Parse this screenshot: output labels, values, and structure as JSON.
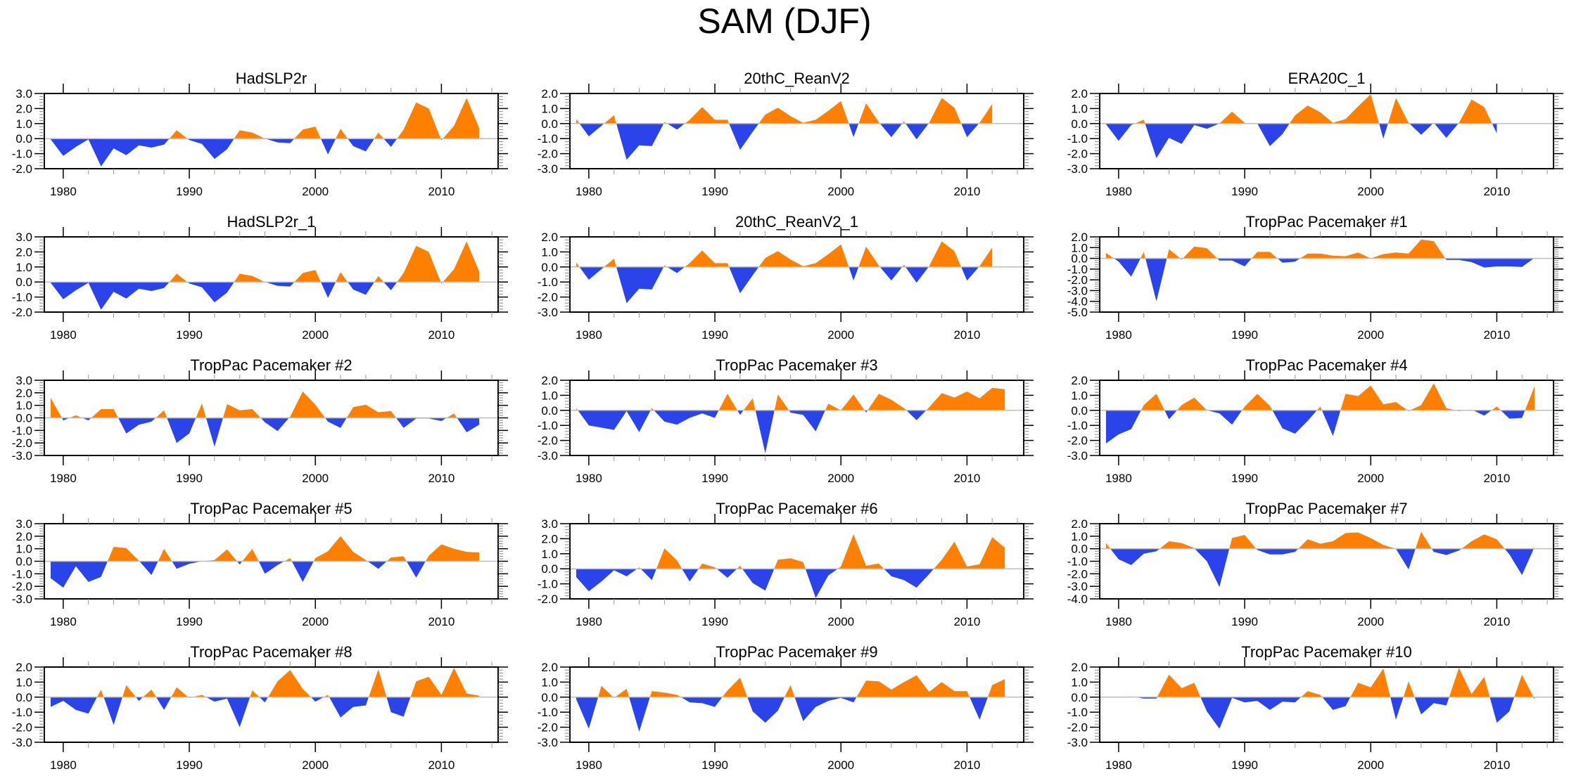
{
  "title": "SAM (DJF)",
  "colors": {
    "positive": "#ff8000",
    "negative": "#2a44ea",
    "zero_line": "#bdbdbd",
    "frame": "#000000"
  },
  "chart_data": [
    {
      "type": "area",
      "title": "HadSLP2r",
      "x_start": 1979,
      "ylim": [
        -2,
        3
      ],
      "yticks": [
        "3.0",
        "2.0",
        "1.0",
        "0.0",
        "-1.0",
        "-2.0"
      ],
      "xticks": [
        "1980",
        "1990",
        "2000",
        "2010"
      ],
      "xlim": [
        1978.5,
        2014.5
      ],
      "values": [
        -0.05,
        -1.15,
        -0.55,
        -0.05,
        -1.85,
        -0.65,
        -1.1,
        -0.45,
        -0.6,
        -0.4,
        0.55,
        -0.1,
        -0.35,
        -1.35,
        -0.7,
        0.55,
        0.4,
        0.0,
        -0.25,
        -0.3,
        0.6,
        0.8,
        -1.05,
        0.65,
        -0.5,
        -0.85,
        0.4,
        -0.55,
        0.6,
        2.4,
        2.0,
        -0.1,
        0.85,
        2.7,
        0.7
      ]
    },
    {
      "type": "area",
      "title": "20thC_ReanV2",
      "x_start": 1979,
      "ylim": [
        -3,
        2
      ],
      "yticks": [
        "2.0",
        "1.0",
        "0.0",
        "-1.0",
        "-2.0",
        "-3.0"
      ],
      "xticks": [
        "1980",
        "1990",
        "2000",
        "2010"
      ],
      "xlim": [
        1978.5,
        2014.5
      ],
      "values": [
        0.3,
        -0.85,
        -0.15,
        0.55,
        -2.4,
        -1.45,
        -1.5,
        0.1,
        -0.4,
        0.25,
        1.1,
        0.25,
        0.25,
        -1.75,
        -0.55,
        0.6,
        1.05,
        0.5,
        0.05,
        0.25,
        0.85,
        1.5,
        -0.9,
        1.35,
        0.1,
        -0.9,
        0.15,
        -1.05,
        0.05,
        1.7,
        1.05,
        -0.9,
        0.05,
        1.3
      ]
    },
    {
      "type": "area",
      "title": "ERA20C_1",
      "x_start": 1979,
      "ylim": [
        -3,
        2
      ],
      "yticks": [
        "2.0",
        "1.0",
        "0.0",
        "-1.0",
        "-2.0",
        "-3.0"
      ],
      "xticks": [
        "1980",
        "1990",
        "2000",
        "2010"
      ],
      "xlim": [
        1978.5,
        2011.5
      ],
      "values": [
        -0.05,
        -1.15,
        -0.1,
        0.25,
        -2.3,
        -0.95,
        -1.35,
        -0.1,
        -0.35,
        0.0,
        0.8,
        0.05,
        0.0,
        -1.5,
        -0.7,
        0.55,
        1.2,
        0.75,
        0.05,
        0.3,
        1.15,
        1.95,
        -1.0,
        1.7,
        0.05,
        -0.75,
        0.05,
        -0.95,
        0.05,
        1.6,
        1.1,
        -0.65
      ]
    },
    {
      "type": "area",
      "title": "HadSLP2r_1",
      "x_start": 1979,
      "ylim": [
        -2,
        3
      ],
      "yticks": [
        "3.0",
        "2.0",
        "1.0",
        "0.0",
        "-1.0",
        "-2.0"
      ],
      "xticks": [
        "1980",
        "1990",
        "2000",
        "2010"
      ],
      "xlim": [
        1978.5,
        2014.5
      ],
      "values": [
        -0.05,
        -1.15,
        -0.55,
        -0.05,
        -1.85,
        -0.65,
        -1.1,
        -0.45,
        -0.6,
        -0.4,
        0.55,
        -0.1,
        -0.35,
        -1.35,
        -0.7,
        0.55,
        0.4,
        0.0,
        -0.25,
        -0.3,
        0.6,
        0.8,
        -1.05,
        0.65,
        -0.5,
        -0.85,
        0.4,
        -0.55,
        0.6,
        2.4,
        2.0,
        -0.1,
        0.85,
        2.7,
        0.7
      ]
    },
    {
      "type": "area",
      "title": "20thC_ReanV2_1",
      "x_start": 1979,
      "ylim": [
        -3,
        2
      ],
      "yticks": [
        "2.0",
        "1.0",
        "0.0",
        "-1.0",
        "-2.0",
        "-3.0"
      ],
      "xticks": [
        "1980",
        "1990",
        "2000",
        "2010"
      ],
      "xlim": [
        1978.5,
        2014.5
      ],
      "values": [
        0.3,
        -0.85,
        -0.15,
        0.55,
        -2.4,
        -1.45,
        -1.5,
        0.1,
        -0.4,
        0.25,
        1.1,
        0.25,
        0.25,
        -1.75,
        -0.55,
        0.6,
        1.05,
        0.5,
        0.05,
        0.25,
        0.85,
        1.5,
        -0.9,
        1.35,
        0.1,
        -0.9,
        0.15,
        -1.05,
        0.05,
        1.7,
        1.05,
        -0.9,
        0.05,
        1.3
      ]
    },
    {
      "type": "area",
      "title": "TropPac Pacemaker #1",
      "x_start": 1979,
      "ylim": [
        -5,
        2
      ],
      "yticks": [
        "2.0",
        "1.0",
        "0.0",
        "-1.0",
        "-2.0",
        "-3.0",
        "-4.0",
        "-5.0"
      ],
      "xticks": [
        "1980",
        "1990",
        "2000",
        "2010"
      ],
      "xlim": [
        1978.5,
        2014.5
      ],
      "values": [
        0.5,
        -0.3,
        -1.7,
        0.6,
        -4.0,
        0.85,
        -0.1,
        1.1,
        0.95,
        -0.2,
        -0.2,
        -0.75,
        0.6,
        0.6,
        -0.4,
        -0.3,
        0.45,
        0.45,
        0.25,
        0.2,
        0.55,
        0.0,
        0.4,
        0.55,
        0.45,
        1.75,
        1.6,
        -0.15,
        -0.15,
        -0.35,
        -0.85,
        -0.75,
        -0.75,
        -0.8,
        0.05
      ]
    },
    {
      "type": "area",
      "title": "TropPac Pacemaker #2",
      "x_start": 1979,
      "ylim": [
        -3,
        3
      ],
      "yticks": [
        "3.0",
        "2.0",
        "1.0",
        "0.0",
        "-1.0",
        "-2.0",
        "-3.0"
      ],
      "xticks": [
        "1980",
        "1990",
        "2000",
        "2010"
      ],
      "xlim": [
        1978.5,
        2014.5
      ],
      "values": [
        1.6,
        -0.2,
        0.2,
        -0.2,
        0.7,
        0.7,
        -1.25,
        -0.55,
        -0.3,
        0.6,
        -2.0,
        -1.25,
        1.15,
        -2.3,
        1.1,
        0.6,
        0.7,
        -0.35,
        -1.05,
        0.1,
        2.1,
        1.05,
        -0.3,
        -0.8,
        0.85,
        1.05,
        0.45,
        0.55,
        -0.8,
        -0.05,
        -0.05,
        -0.25,
        0.35,
        -1.15,
        -0.55
      ]
    },
    {
      "type": "area",
      "title": "TropPac Pacemaker #3",
      "x_start": 1979,
      "ylim": [
        -3,
        2
      ],
      "yticks": [
        "2.0",
        "1.0",
        "0.0",
        "-1.0",
        "-2.0",
        "-3.0"
      ],
      "xticks": [
        "1980",
        "1990",
        "2000",
        "2010"
      ],
      "xlim": [
        1978.5,
        2014.5
      ],
      "values": [
        0.15,
        -1.0,
        -1.15,
        -1.3,
        -0.05,
        -1.45,
        0.15,
        -0.75,
        -0.95,
        -0.5,
        -0.2,
        -0.5,
        1.1,
        -0.3,
        0.8,
        -2.85,
        1.05,
        -0.15,
        -0.3,
        -1.4,
        0.45,
        0.0,
        1.05,
        -0.15,
        1.1,
        0.7,
        0.15,
        -0.65,
        0.2,
        1.15,
        0.85,
        1.25,
        0.8,
        1.5,
        1.4
      ]
    },
    {
      "type": "area",
      "title": "TropPac Pacemaker #4",
      "x_start": 1979,
      "ylim": [
        -3,
        2
      ],
      "yticks": [
        "2.0",
        "1.0",
        "0.0",
        "-1.0",
        "-2.0",
        "-3.0"
      ],
      "xticks": [
        "1980",
        "1990",
        "2000",
        "2010"
      ],
      "xlim": [
        1978.5,
        2014.5
      ],
      "values": [
        -2.2,
        -1.6,
        -1.25,
        0.35,
        1.1,
        -0.6,
        0.35,
        0.85,
        0.0,
        -0.2,
        -0.95,
        0.25,
        1.1,
        0.3,
        -1.2,
        -1.55,
        -0.7,
        0.25,
        -1.7,
        1.1,
        0.95,
        1.65,
        0.4,
        0.55,
        -0.05,
        0.35,
        1.8,
        0.15,
        -0.05,
        0.05,
        -0.35,
        0.25,
        -0.55,
        -0.5,
        1.6
      ]
    },
    {
      "type": "area",
      "title": "TropPac Pacemaker #5",
      "x_start": 1979,
      "ylim": [
        -3,
        3
      ],
      "yticks": [
        "3.0",
        "2.0",
        "1.0",
        "0.0",
        "-1.0",
        "-2.0",
        "-3.0"
      ],
      "xticks": [
        "1980",
        "1990",
        "2000",
        "2010"
      ],
      "xlim": [
        1978.5,
        2014.5
      ],
      "values": [
        -1.35,
        -2.1,
        -0.4,
        -1.65,
        -1.25,
        1.15,
        1.05,
        0.05,
        -1.1,
        1.0,
        -0.6,
        -0.2,
        0.0,
        0.1,
        0.95,
        -0.25,
        1.0,
        -1.0,
        -0.3,
        0.25,
        -1.65,
        0.25,
        0.8,
        2.0,
        0.75,
        0.1,
        -0.6,
        0.3,
        0.4,
        -1.3,
        0.45,
        1.35,
        1.0,
        0.75,
        0.7
      ]
    },
    {
      "type": "area",
      "title": "TropPac Pacemaker #6",
      "x_start": 1979,
      "ylim": [
        -2,
        3
      ],
      "yticks": [
        "3.0",
        "2.0",
        "1.0",
        "0.0",
        "-1.0",
        "-2.0"
      ],
      "xticks": [
        "1980",
        "1990",
        "2000",
        "2010"
      ],
      "xlim": [
        1978.5,
        2014.5
      ],
      "values": [
        -0.55,
        -1.5,
        -0.85,
        -0.1,
        -0.5,
        0.1,
        -0.75,
        1.35,
        0.55,
        -0.85,
        0.35,
        0.1,
        -0.6,
        0.2,
        -0.95,
        -1.45,
        0.6,
        0.7,
        0.45,
        -1.95,
        -0.45,
        0.15,
        2.3,
        0.2,
        0.35,
        -0.5,
        -0.75,
        -1.25,
        -0.35,
        0.6,
        1.8,
        0.15,
        0.3,
        2.1,
        1.4
      ]
    },
    {
      "type": "area",
      "title": "TropPac Pacemaker #7",
      "x_start": 1979,
      "ylim": [
        -4,
        2
      ],
      "yticks": [
        "2.0",
        "1.0",
        "0.0",
        "-1.0",
        "-2.0",
        "-3.0",
        "-4.0"
      ],
      "xticks": [
        "1980",
        "1990",
        "2000",
        "2010"
      ],
      "xlim": [
        1978.5,
        2014.5
      ],
      "values": [
        0.45,
        -0.85,
        -1.3,
        -0.4,
        -0.2,
        0.6,
        0.45,
        0.05,
        -1.0,
        -3.05,
        0.85,
        1.1,
        -0.1,
        -0.45,
        -0.45,
        -0.25,
        0.75,
        0.4,
        0.6,
        1.25,
        1.3,
        0.85,
        0.3,
        0.0,
        -1.65,
        1.35,
        -0.25,
        -0.5,
        -0.15,
        0.6,
        1.15,
        0.75,
        -0.45,
        -2.1,
        0.15
      ]
    },
    {
      "type": "area",
      "title": "TropPac Pacemaker #8",
      "x_start": 1979,
      "ylim": [
        -3,
        2
      ],
      "yticks": [
        "2.0",
        "1.0",
        "0.0",
        "-1.0",
        "-2.0",
        "-3.0"
      ],
      "xticks": [
        "1980",
        "1990",
        "2000",
        "2010"
      ],
      "xlim": [
        1978.5,
        2014.5
      ],
      "values": [
        -0.65,
        -0.25,
        -0.85,
        -1.1,
        0.5,
        -1.85,
        0.8,
        -0.25,
        0.5,
        -0.85,
        0.65,
        -0.05,
        0.15,
        -0.3,
        -0.1,
        -2.0,
        0.45,
        -0.35,
        1.05,
        1.8,
        0.55,
        -0.3,
        0.15,
        -1.35,
        -0.65,
        -0.55,
        1.85,
        -1.0,
        -1.3,
        1.05,
        1.35,
        0.15,
        1.95,
        0.25,
        0.1
      ]
    },
    {
      "type": "area",
      "title": "TropPac Pacemaker #9",
      "x_start": 1979,
      "ylim": [
        -3,
        2
      ],
      "yticks": [
        "2.0",
        "1.0",
        "0.0",
        "-1.0",
        "-2.0",
        "-3.0"
      ],
      "xticks": [
        "1980",
        "1990",
        "2000",
        "2010"
      ],
      "xlim": [
        1978.5,
        2014.5
      ],
      "values": [
        -0.15,
        -2.1,
        0.75,
        -0.05,
        0.55,
        -2.3,
        0.4,
        0.3,
        0.15,
        -0.35,
        -0.4,
        -0.65,
        0.45,
        1.3,
        -0.95,
        -1.7,
        -0.9,
        0.8,
        -1.6,
        -0.65,
        -0.25,
        -0.05,
        -0.35,
        1.1,
        1.05,
        0.5,
        1.0,
        1.45,
        0.35,
        1.0,
        0.4,
        0.4,
        -1.5,
        0.8,
        1.2
      ]
    },
    {
      "type": "area",
      "title": "TropPac Pacemaker #10",
      "x_start": 1979,
      "ylim": [
        -3,
        2
      ],
      "yticks": [
        "2.0",
        "1.0",
        "0.0",
        "-1.0",
        "-2.0",
        "-3.0"
      ],
      "xticks": [
        "1980",
        "1990",
        "2000",
        "2010"
      ],
      "xlim": [
        1978.5,
        2014.5
      ],
      "values": [
        0.0,
        0.0,
        0.05,
        -0.1,
        -0.1,
        1.5,
        0.6,
        0.95,
        -0.95,
        -2.1,
        -0.05,
        -0.35,
        -0.25,
        -0.85,
        -0.3,
        -0.35,
        0.4,
        0.15,
        -0.85,
        -0.6,
        0.95,
        0.65,
        1.9,
        -1.5,
        1.05,
        -1.15,
        -0.4,
        -0.55,
        1.95,
        0.2,
        1.35,
        -1.7,
        -0.95,
        1.5,
        -0.15
      ]
    }
  ]
}
